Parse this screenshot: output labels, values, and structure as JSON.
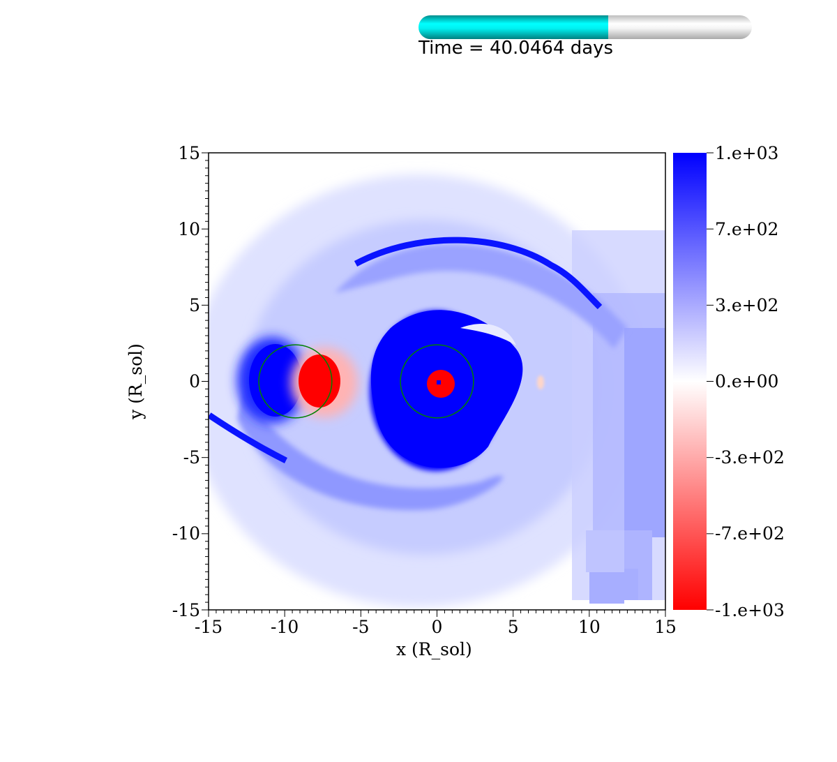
{
  "progress": {
    "fraction": 0.57,
    "track_color": "#ffffff",
    "fill_color": "#00ffff"
  },
  "time_label": "Time = 40.0464 days",
  "chart_data": {
    "type": "heatmap",
    "colormap": [
      "#ff0000",
      "#ffffff",
      "#0000ff"
    ],
    "xlim": [
      -15,
      15
    ],
    "ylim": [
      -15,
      15
    ],
    "xlabel": "x (R_sol)",
    "ylabel": "y (R_sol)",
    "xticks": [
      "-15",
      "-10",
      "-5",
      "0",
      "5",
      "10",
      "15"
    ],
    "xtick_values": [
      -15,
      -10,
      -5,
      0,
      5,
      10,
      15
    ],
    "yticks": [
      "15",
      "10",
      "5",
      "0",
      "-5",
      "-10",
      "-15"
    ],
    "ytick_values": [
      15,
      10,
      5,
      0,
      -5,
      -10,
      -15
    ],
    "colorbar": {
      "range": [
        -1000,
        1000
      ],
      "labels": [
        "1.e+03",
        "7.e+02",
        "3.e+02",
        "0.e+00",
        "-3.e+02",
        "-7.e+02",
        "-1.e+03"
      ],
      "label_values": [
        1000,
        666.7,
        333.3,
        0,
        -333.3,
        -666.7,
        -1000
      ]
    },
    "circles": [
      {
        "cx": -9.3,
        "cy": 0.0,
        "r": 2.4,
        "color": "#008000"
      },
      {
        "cx": 0.0,
        "cy": 0.0,
        "r": 2.4,
        "color": "#008000"
      }
    ]
  }
}
